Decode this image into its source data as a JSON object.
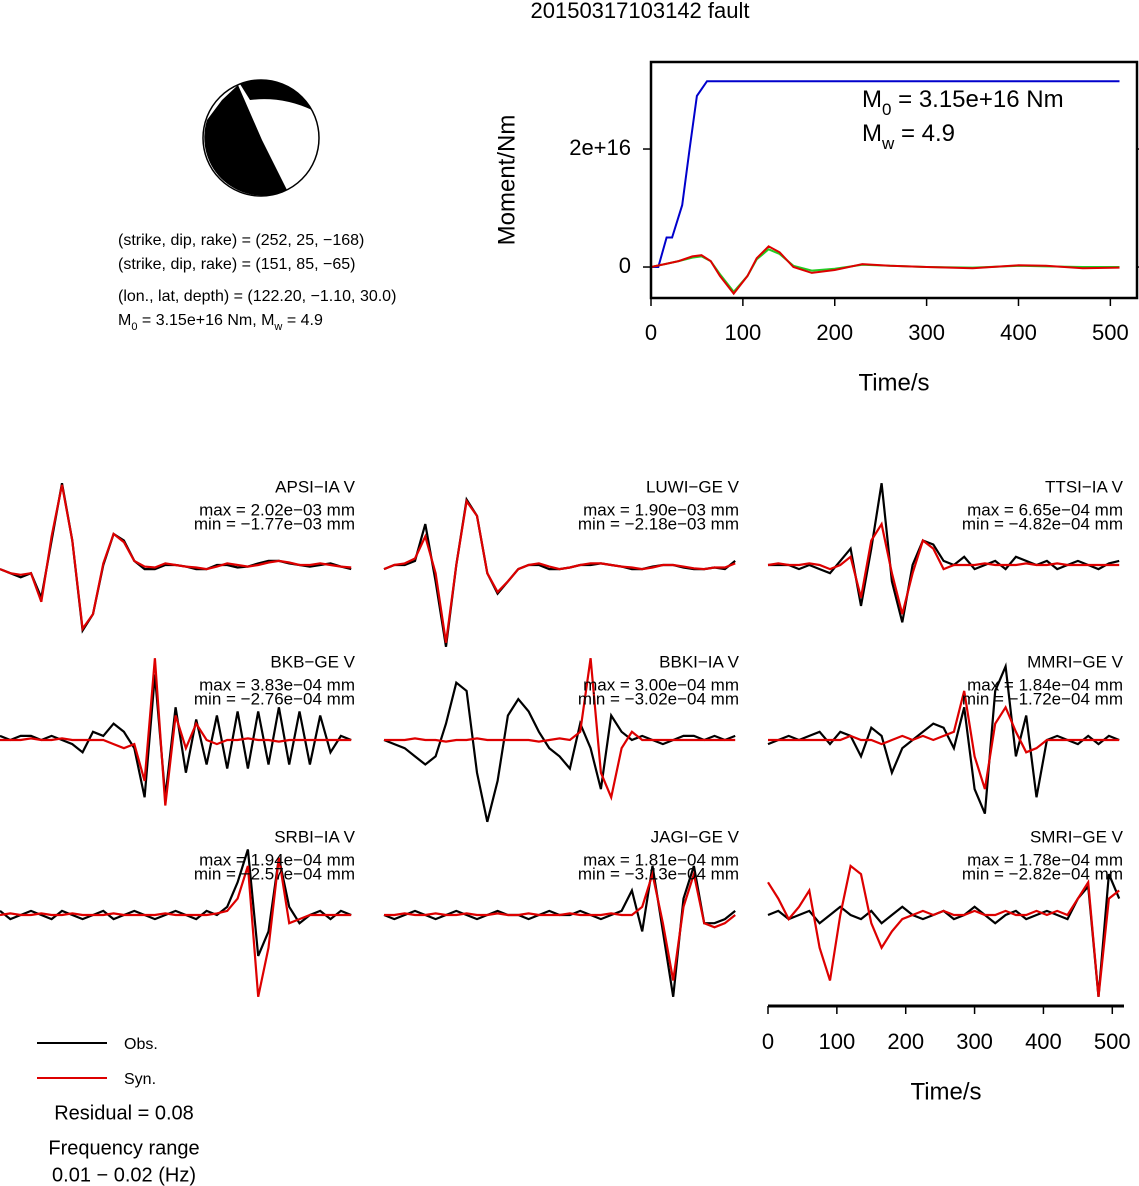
{
  "title": "20150317103142 fault",
  "mechanism": {
    "lines": [
      "(strike, dip, rake) = (252, 25, −168)",
      "(strike, dip, rake) = (151, 85, −65)",
      "(lon., lat, depth) = (122.20, −1.10, 30.0)"
    ],
    "moment": [
      "M",
      "0",
      " = 3.15e+16 Nm, M",
      "w",
      " = 4.9"
    ]
  },
  "chart_data": [
    {
      "type": "line",
      "xlabel": "Time/s",
      "ylabel": "Moment/Nm",
      "xlim": [
        0,
        529
      ],
      "xticks": [
        0,
        100,
        200,
        300,
        400,
        500
      ],
      "ylim": [
        -5250000000000000.0,
        3.475e+16
      ],
      "yticks": [
        0,
        {
          "value": 2e+16,
          "label": "2e+16"
        }
      ],
      "annotations": [
        [
          "M",
          "0",
          " = 3.15e+16 Nm"
        ],
        [
          "M",
          "w",
          " = 4.9"
        ]
      ],
      "series": [
        {
          "color": "#0000cc",
          "x": [
            0,
            8,
            17,
            23,
            34,
            42,
            50,
            61,
            510
          ],
          "values": [
            0,
            0,
            5000000000000000.0,
            5000000000000000.0,
            1.05e+16,
            2e+16,
            2.9e+16,
            3.15e+16,
            3.15e+16
          ]
        },
        {
          "color": "#22cc22",
          "x": [
            0,
            15,
            30,
            45,
            55,
            65,
            75,
            90,
            105,
            115,
            128,
            140,
            155,
            175,
            200,
            230,
            260,
            300,
            350,
            400,
            430,
            470,
            510
          ],
          "values": [
            0,
            500000000000000.0,
            1000000000000000.0,
            1600000000000000.0,
            1800000000000000.0,
            1000000000000000.0,
            -1200000000000000.0,
            -4200000000000000.0,
            -1500000000000000.0,
            1300000000000000.0,
            3000000000000000.0,
            2200000000000000.0,
            200000000000000.0,
            -600000000000000.0,
            -300000000000000.0,
            400000000000000.0,
            200000000000000.0,
            0,
            -100000000000000.0,
            200000000000000.0,
            100000000000000.0,
            0,
            0
          ]
        },
        {
          "color": "#dd0000",
          "x": [
            0,
            15,
            30,
            45,
            55,
            65,
            75,
            90,
            105,
            115,
            128,
            140,
            155,
            175,
            200,
            230,
            260,
            300,
            350,
            400,
            430,
            470,
            510
          ],
          "values": [
            0,
            500000000000000.0,
            1000000000000000.0,
            1800000000000000.0,
            2000000000000000.0,
            1000000000000000.0,
            -1500000000000000.0,
            -4500000000000000.0,
            -1500000000000000.0,
            1500000000000000.0,
            3500000000000000.0,
            2500000000000000.0,
            0,
            -1000000000000000.0,
            -500000000000000.0,
            500000000000000.0,
            200000000000000.0,
            0,
            -200000000000000.0,
            300000000000000.0,
            200000000000000.0,
            -200000000000000.0,
            -100000000000000.0
          ]
        }
      ]
    },
    {
      "type": "waveforms",
      "xlabel": "Time/s",
      "xlim": [
        0,
        517
      ],
      "xticks": [
        0,
        100,
        200,
        300,
        400,
        500
      ],
      "ylim": [
        -1.1,
        1.1
      ],
      "x": [
        0,
        15,
        30,
        45,
        60,
        75,
        90,
        105,
        120,
        135,
        150,
        165,
        180,
        195,
        210,
        225,
        240,
        255,
        270,
        285,
        300,
        315,
        330,
        345,
        360,
        375,
        390,
        405,
        420,
        435,
        450,
        465,
        480,
        495,
        510
      ],
      "legend": [
        {
          "name": "Obs.",
          "color": "#000000"
        },
        {
          "name": "Syn.",
          "color": "#dd0000"
        }
      ],
      "residual": "Residual = 0.08",
      "frequency": [
        "Frequency range",
        "0.01 − 0.02 (Hz)"
      ],
      "panels": [
        {
          "name": "APSI−IA V",
          "max": "max = 2.02e−03 mm",
          "min": "min = −1.77e−03 mm",
          "values": [
            [
              -0.05,
              -0.1,
              -0.15,
              -0.1,
              -0.4,
              0.3,
              1.0,
              0.3,
              -0.8,
              -0.6,
              0,
              0.38,
              0.3,
              0.05,
              -0.05,
              -0.05,
              0,
              0,
              -0.02,
              -0.05,
              -0.05,
              0,
              0,
              -0.03,
              -0.02,
              0.02,
              0.05,
              0.05,
              0.02,
              0,
              -0.02,
              0,
              0.02,
              -0.02,
              -0.05
            ],
            [
              -0.05,
              -0.1,
              -0.12,
              -0.1,
              -0.45,
              0.35,
              0.98,
              0.3,
              -0.78,
              -0.6,
              0.02,
              0.38,
              0.28,
              0.05,
              -0.02,
              -0.03,
              0.02,
              0,
              -0.02,
              -0.03,
              -0.05,
              -0.02,
              0.02,
              0,
              -0.02,
              0,
              0.03,
              0.05,
              0.03,
              0,
              0,
              0.02,
              0,
              -0.02,
              -0.03
            ]
          ]
        },
        {
          "name": "LUWI−GE V",
          "max": "max = 1.90e−03 mm",
          "min": "min = −2.18e−03 mm",
          "values": [
            [
              -0.05,
              0,
              0,
              0.05,
              0.5,
              -0.2,
              -1.0,
              0,
              0.8,
              0.6,
              -0.1,
              -0.35,
              -0.2,
              -0.05,
              0,
              0,
              -0.05,
              -0.05,
              -0.03,
              0,
              0,
              0.02,
              0,
              -0.02,
              -0.05,
              -0.05,
              -0.02,
              0,
              0,
              -0.03,
              -0.05,
              -0.05,
              -0.03,
              -0.05,
              0.05
            ],
            [
              -0.05,
              0,
              0.02,
              0.08,
              0.35,
              -0.1,
              -0.95,
              0,
              0.78,
              0.6,
              -0.1,
              -0.33,
              -0.2,
              -0.05,
              0,
              0.02,
              -0.02,
              -0.05,
              -0.03,
              0,
              0.02,
              0.02,
              0,
              -0.02,
              -0.03,
              -0.05,
              -0.03,
              0,
              0,
              -0.02,
              -0.04,
              -0.05,
              -0.03,
              -0.03,
              0.02
            ]
          ]
        },
        {
          "name": "TTSI−IA V",
          "max": "max = 6.65e−04 mm",
          "min": "min = −4.82e−04 mm",
          "values": [
            [
              0,
              0,
              0,
              -0.05,
              0,
              -0.05,
              -0.1,
              0.05,
              0.2,
              -0.5,
              0.2,
              1.0,
              -0.2,
              -0.7,
              0,
              0.3,
              0.25,
              0.05,
              0,
              0.1,
              -0.05,
              0,
              0.05,
              -0.05,
              0.1,
              0.05,
              0,
              0.05,
              -0.05,
              0,
              0.05,
              0,
              -0.05,
              0.02,
              0.05
            ],
            [
              0,
              0.02,
              0,
              0,
              0.02,
              0,
              -0.05,
              0,
              0.1,
              -0.4,
              0.3,
              0.5,
              -0.1,
              -0.6,
              -0.1,
              0.3,
              0.2,
              -0.05,
              0,
              0,
              0,
              0.02,
              0,
              0,
              0,
              0.02,
              0,
              0,
              0.02,
              0,
              0,
              0,
              0,
              0,
              0
            ]
          ]
        },
        {
          "name": "BKB−GE V",
          "max": "max = 3.83e−04 mm",
          "min": "min = −2.76e−04 mm",
          "values": [
            [
              0.05,
              0,
              0.05,
              0.05,
              0,
              0.05,
              0,
              -0.05,
              -0.15,
              0.1,
              0.05,
              0.2,
              0.1,
              -0.1,
              -0.7,
              0.8,
              -0.7,
              0.4,
              -0.4,
              0.25,
              -0.3,
              0.3,
              -0.35,
              0.35,
              -0.35,
              0.35,
              -0.3,
              0.4,
              -0.3,
              0.35,
              -0.3,
              0.3,
              -0.15,
              0.05,
              0
            ],
            [
              0,
              0,
              0,
              0.02,
              0,
              0,
              0.02,
              0,
              0,
              0,
              0,
              -0.05,
              -0.1,
              -0.05,
              -0.5,
              1.0,
              -0.8,
              0.3,
              -0.1,
              0.2,
              0,
              -0.05,
              0,
              0,
              0.02,
              0,
              0,
              -0.02,
              0,
              0,
              0,
              0,
              0,
              0,
              0
            ]
          ]
        },
        {
          "name": "BBKI−IA V",
          "max": "max = 3.00e−04 mm",
          "min": "min = −3.02e−04 mm",
          "values": [
            [
              0,
              -0.05,
              -0.1,
              -0.2,
              -0.3,
              -0.2,
              0.2,
              0.7,
              0.6,
              -0.4,
              -1.0,
              -0.5,
              0.3,
              0.5,
              0.35,
              0.1,
              -0.1,
              -0.2,
              -0.35,
              0.2,
              -0.1,
              -0.6,
              0.3,
              0.1,
              0,
              0.05,
              0,
              -0.05,
              0,
              0.05,
              0.05,
              0,
              0.05,
              0,
              0.05
            ],
            [
              0,
              0,
              0,
              0.02,
              0,
              0,
              -0.02,
              0,
              0,
              0.02,
              0,
              0,
              0,
              0,
              0,
              -0.02,
              0,
              0.02,
              0,
              0.1,
              1.0,
              -0.4,
              -0.7,
              -0.1,
              0.1,
              0,
              0,
              0,
              0,
              0,
              0,
              0,
              0,
              0,
              0
            ]
          ]
        },
        {
          "name": "MMRI−GE V",
          "max": "max = 1.84e−04 mm",
          "min": "min = −1.72e−04 mm",
          "values": [
            [
              -0.05,
              0,
              0.05,
              0,
              0.05,
              0.1,
              -0.05,
              0.1,
              0.05,
              -0.2,
              0.15,
              0.05,
              -0.4,
              -0.1,
              0,
              0.1,
              0.2,
              0.15,
              -0.1,
              0.4,
              -0.6,
              -0.9,
              0.6,
              0.9,
              -0.2,
              0.3,
              -0.7,
              0,
              0.05,
              0,
              -0.05,
              0.05,
              -0.05,
              0.05,
              0
            ],
            [
              0,
              0,
              0,
              0,
              0,
              0,
              0,
              0,
              0.05,
              0,
              0,
              -0.05,
              0,
              0.05,
              0,
              0.05,
              0,
              0.05,
              0.1,
              0.6,
              -0.2,
              -0.6,
              0.2,
              0.4,
              0.1,
              -0.15,
              -0.1,
              0,
              0,
              0,
              0,
              0,
              0,
              0,
              0
            ]
          ]
        },
        {
          "name": "SRBI−IA V",
          "max": "max = 1.94e−04 mm",
          "min": "min = −2.57e−04 mm",
          "values": [
            [
              0.05,
              -0.05,
              0,
              0.05,
              0,
              -0.05,
              0.05,
              0,
              -0.05,
              0,
              0.05,
              -0.05,
              0,
              0.05,
              0,
              -0.05,
              0,
              0.05,
              0,
              -0.05,
              0.05,
              0,
              0.1,
              0.4,
              0.8,
              -0.5,
              -0.2,
              0.7,
              0.1,
              -0.1,
              0,
              0.05,
              -0.05,
              0.05,
              0
            ],
            [
              0,
              0.02,
              0,
              0,
              0.02,
              0,
              0,
              0.02,
              0,
              0,
              0,
              0.02,
              0,
              0,
              0,
              0,
              0.02,
              0,
              0,
              0,
              0,
              0.02,
              0.05,
              0.2,
              0.6,
              -1.0,
              -0.4,
              0.7,
              -0.1,
              -0.05,
              0,
              0,
              0,
              0,
              0
            ]
          ]
        },
        {
          "name": "JAGI−GE V",
          "max": "max = 1.81e−04 mm",
          "min": "min = −3.13e−04 mm",
          "values": [
            [
              0,
              -0.05,
              0,
              0.05,
              0,
              -0.05,
              0,
              0.05,
              0,
              -0.05,
              0,
              0.05,
              0,
              0,
              -0.05,
              0,
              0.05,
              0,
              0,
              0.05,
              0,
              -0.05,
              0,
              0.05,
              0.3,
              -0.2,
              0.6,
              -0.2,
              -1.0,
              0.2,
              0.6,
              -0.1,
              -0.1,
              -0.05,
              0.05
            ],
            [
              0,
              0,
              0.02,
              0,
              0,
              0.02,
              0,
              0,
              0.02,
              0,
              0,
              0.02,
              0,
              0,
              0.02,
              0,
              0,
              0,
              0.02,
              0,
              0,
              0,
              0.02,
              0,
              0,
              0.1,
              0.5,
              -0.1,
              -0.8,
              0.1,
              0.5,
              -0.1,
              -0.15,
              -0.1,
              0
            ]
          ]
        },
        {
          "name": "SMRI−GE V",
          "max": "max = 1.78e−04 mm",
          "min": "min = −2.82e−04 mm",
          "values": [
            [
              0,
              0.05,
              -0.05,
              0,
              0.05,
              -0.1,
              0,
              0.1,
              0,
              -0.05,
              0.05,
              -0.1,
              0,
              0.1,
              0,
              -0.05,
              0,
              0.05,
              -0.05,
              0,
              0.1,
              0,
              -0.1,
              0,
              0.05,
              -0.05,
              0,
              0.05,
              0,
              -0.05,
              0.2,
              0.35,
              -1.0,
              0.5,
              0.2
            ],
            [
              0.4,
              0.2,
              -0.05,
              0.1,
              0.3,
              -0.4,
              -0.8,
              0,
              0.6,
              0.5,
              -0.1,
              -0.4,
              -0.2,
              -0.05,
              0,
              0.05,
              0,
              0.05,
              0,
              0,
              0.05,
              0,
              0,
              0.05,
              0,
              0,
              0.05,
              0,
              0.05,
              0,
              0.2,
              0.4,
              -1.0,
              0.2,
              0.3
            ]
          ]
        }
      ]
    }
  ]
}
